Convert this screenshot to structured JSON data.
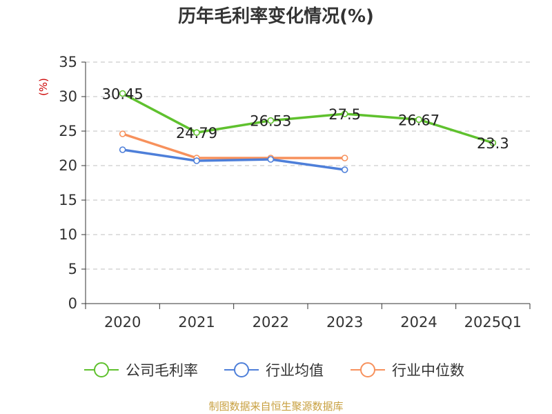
{
  "chart_data": {
    "type": "line",
    "title": "历年毛利率变化情况(%)",
    "ylabel": "(%)",
    "categories": [
      "2020",
      "2021",
      "2022",
      "2023",
      "2024",
      "2025Q1"
    ],
    "ylim": [
      0,
      35
    ],
    "yticks": [
      0,
      5,
      10,
      15,
      20,
      25,
      30,
      35
    ],
    "grid": "horizontal-dashed",
    "legend_position": "bottom",
    "series": [
      {
        "name": "公司毛利率",
        "color": "#5fc12e",
        "values": [
          30.45,
          24.79,
          26.53,
          27.5,
          26.67,
          23.3
        ],
        "labels": [
          "30.45",
          "24.79",
          "26.53",
          "27.5",
          "26.67",
          "23.3"
        ]
      },
      {
        "name": "行业均值",
        "color": "#4e7fd9",
        "values": [
          22.3,
          20.7,
          20.9,
          19.4,
          null,
          null
        ]
      },
      {
        "name": "行业中位数",
        "color": "#f7915c",
        "values": [
          24.6,
          21.1,
          21.1,
          21.1,
          null,
          null
        ]
      }
    ]
  },
  "source": "制图数据来自恒生聚源数据库"
}
